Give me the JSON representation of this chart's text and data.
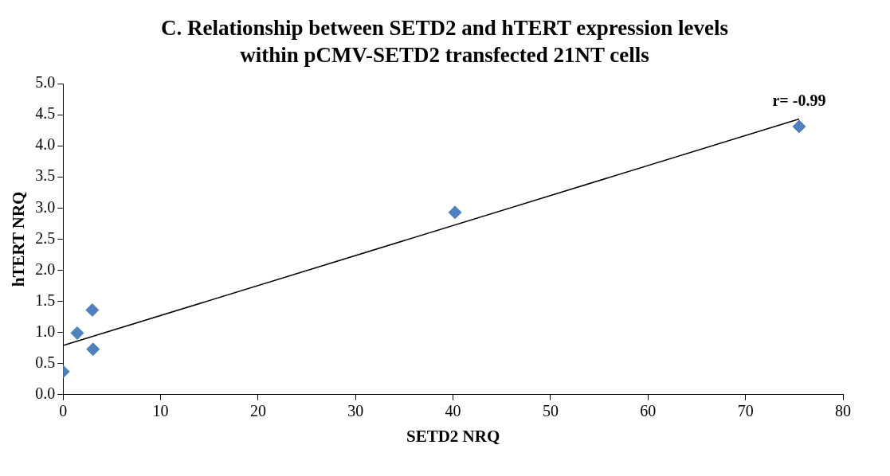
{
  "chart_data": {
    "type": "scatter",
    "title": "C. Relationship between SETD2 and hTERT expression levels within pCMV-SETD2 transfected 21NT cells",
    "xlabel": "SETD2 NRQ",
    "ylabel": "hTERT NRQ",
    "series": [
      {
        "type": "scatter",
        "color": "#4f81bd",
        "marker": "diamond",
        "x": [
          0,
          1.45,
          3.0,
          3.07,
          40.2,
          75.5
        ],
        "values": [
          0.37,
          0.99,
          1.36,
          0.73,
          2.93,
          4.31
        ]
      },
      {
        "type": "line",
        "color": "#000000",
        "marker": "none",
        "x": [
          0,
          75.5
        ],
        "values": [
          0.79,
          4.43
        ]
      }
    ],
    "xlim": [
      0,
      80
    ],
    "xticks": [
      0,
      10,
      20,
      30,
      40,
      50,
      60,
      70,
      80
    ],
    "ylim": [
      0,
      5
    ],
    "yticks": [
      {
        "value": 0,
        "label": "0.0"
      },
      {
        "value": 0.5,
        "label": "0.5"
      },
      {
        "value": 1,
        "label": "1.0"
      },
      {
        "value": 1.5,
        "label": "1.5"
      },
      {
        "value": 2,
        "label": "2.0"
      },
      {
        "value": 2.5,
        "label": "2.5"
      },
      {
        "value": 3,
        "label": "3.0"
      },
      {
        "value": 3.5,
        "label": "3.5"
      },
      {
        "value": 4,
        "label": "4.0"
      },
      {
        "value": 4.5,
        "label": "4.5"
      },
      {
        "value": 5,
        "label": "5.0"
      }
    ],
    "annotations": [
      {
        "text": "r= -0.99",
        "x": 75.5,
        "y": 4.43
      }
    ],
    "grid": false,
    "legend": false
  }
}
